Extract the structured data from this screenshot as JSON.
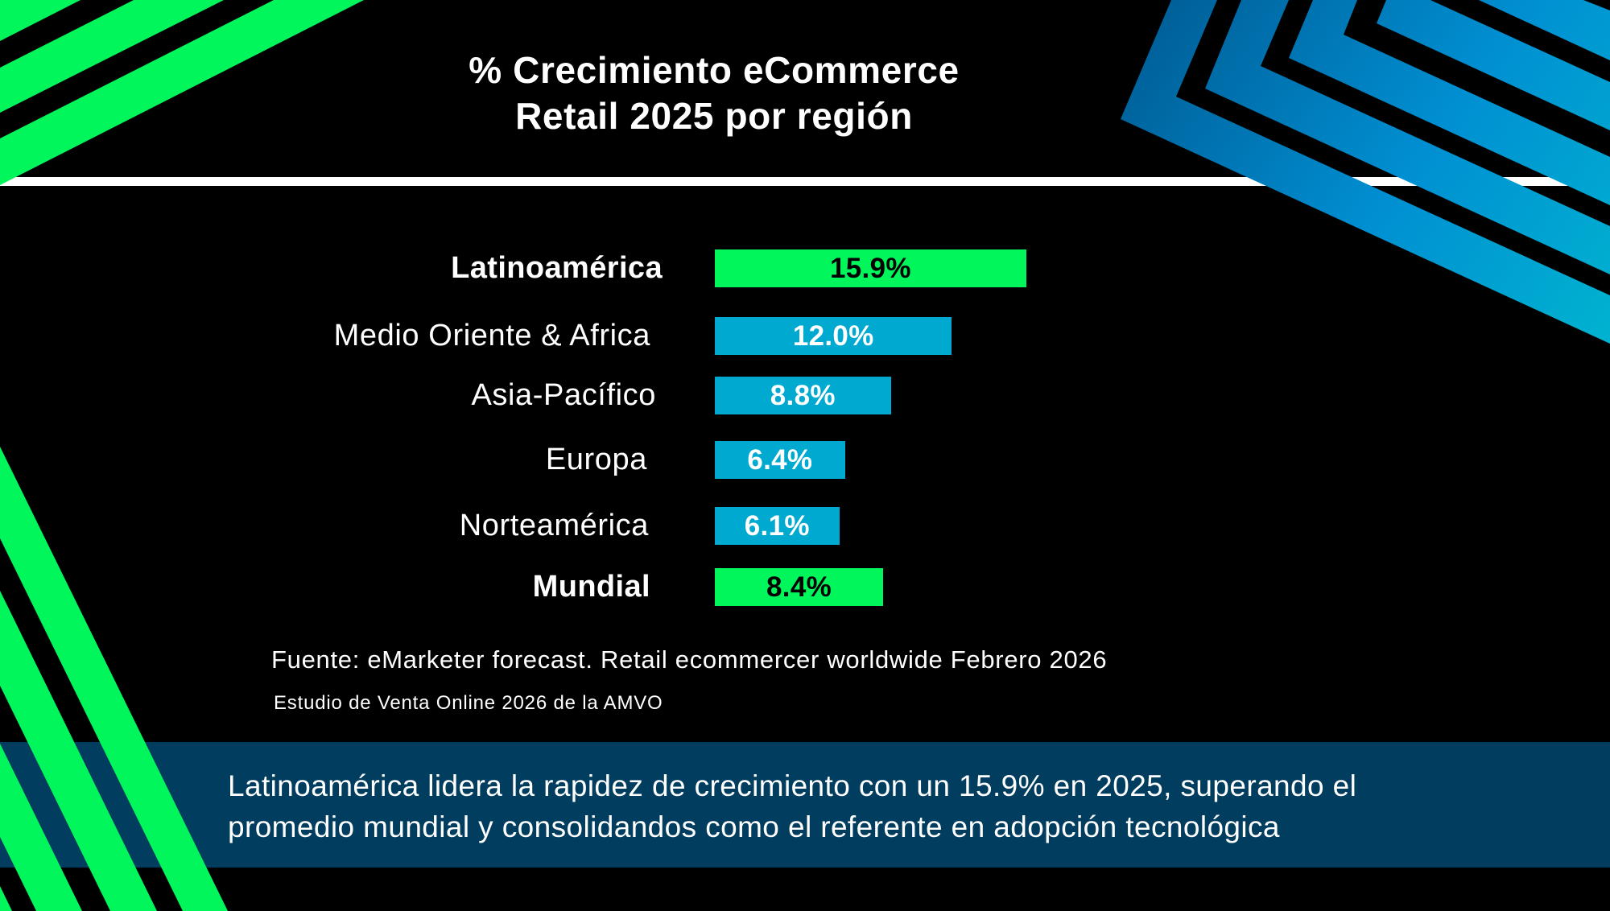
{
  "title": {
    "line1": "% Crecimiento eCommerce",
    "line2": "Retail 2025 por región"
  },
  "chart_data": {
    "type": "bar",
    "orientation": "horizontal",
    "title": "% Crecimiento eCommerce Retail 2025 por región",
    "xlabel": "",
    "ylabel": "",
    "unit": "%",
    "categories": [
      "Latinoamérica",
      "Medio Oriente & Africa",
      "Asia-Pacífico",
      "Europa",
      "Norteamérica",
      "Mundial"
    ],
    "values": [
      15.9,
      12.0,
      8.8,
      6.4,
      6.1,
      8.4
    ],
    "value_labels": [
      "15.9%",
      "12.0%",
      "8.8%",
      "6.4%",
      "6.1%",
      "8.4%"
    ],
    "highlight": [
      true,
      false,
      false,
      false,
      false,
      true
    ],
    "xlim": [
      0,
      16
    ],
    "grid": false,
    "legend": "none",
    "colors": {
      "highlight": "#00f65a",
      "default": "#00a9d0",
      "highlight_text": "#000000",
      "default_text": "#ffffff"
    }
  },
  "source": {
    "line1": "Fuente: eMarketer forecast. Retail ecommercer worldwide Febrero 2026",
    "line2": "Estudio de Venta Online 2026 de la AMVO"
  },
  "callout": {
    "line1": "Latinoamérica lidera la rapidez de crecimiento con un 15.9% en 2025, superando el",
    "line2": "promedio mundial y consolidandos como el referente en adopción tecnológica"
  },
  "theme": {
    "background": "#000000",
    "band": "#003d5f",
    "accent_green": "#00f65a",
    "accent_blue": "#0090d2"
  }
}
